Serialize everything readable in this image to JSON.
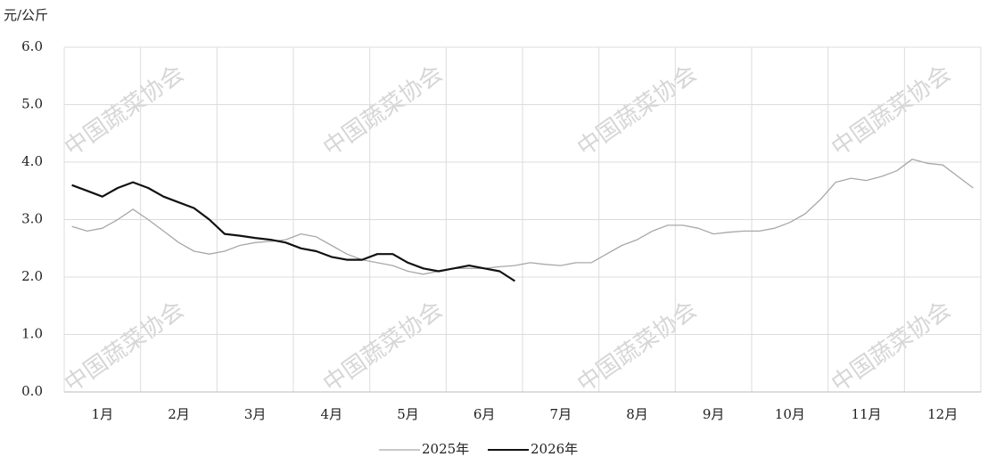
{
  "chart_data": {
    "type": "line",
    "y_label": "元/公斤",
    "watermark": "中国蔬菜协会",
    "categories": [
      null,
      null,
      "1月",
      null,
      null,
      null,
      null,
      "2月",
      null,
      null,
      null,
      null,
      "3月",
      null,
      null,
      null,
      null,
      "4月",
      null,
      null,
      null,
      null,
      "5月",
      null,
      null,
      null,
      null,
      "6月",
      null,
      null,
      null,
      null,
      "7月",
      null,
      null,
      null,
      null,
      "8月",
      null,
      null,
      null,
      null,
      "9月",
      null,
      null,
      null,
      null,
      "10月",
      null,
      null,
      null,
      null,
      "11月",
      null,
      null,
      null,
      null,
      "12月",
      null,
      null
    ],
    "series": [
      {
        "name": "2025年",
        "color": "#a8a8a8",
        "values": [
          2.88,
          2.8,
          2.85,
          3.0,
          3.18,
          3.0,
          2.8,
          2.6,
          2.45,
          2.4,
          2.45,
          2.55,
          2.6,
          2.62,
          2.65,
          2.75,
          2.7,
          2.55,
          2.4,
          2.3,
          2.25,
          2.2,
          2.1,
          2.05,
          2.1,
          2.15,
          2.15,
          2.15,
          2.18,
          2.2,
          2.25,
          2.22,
          2.2,
          2.25,
          2.25,
          2.4,
          2.55,
          2.65,
          2.8,
          2.9,
          2.9,
          2.85,
          2.75,
          2.78,
          2.8,
          2.8,
          2.85,
          2.95,
          3.1,
          3.35,
          3.65,
          3.72,
          3.68,
          3.75,
          3.85,
          4.05,
          3.98,
          3.95,
          3.75,
          3.55
        ]
      },
      {
        "name": "2026年",
        "color": "#111111",
        "values": [
          3.6,
          3.5,
          3.4,
          3.55,
          3.65,
          3.55,
          3.4,
          3.3,
          3.2,
          3.0,
          2.75,
          2.72,
          2.68,
          2.65,
          2.6,
          2.5,
          2.45,
          2.35,
          2.3,
          2.3,
          2.4,
          2.4,
          2.25,
          2.15,
          2.1,
          2.15,
          2.2,
          2.15,
          2.1,
          1.93,
          null,
          null,
          null,
          null,
          null,
          null,
          null,
          null,
          null,
          null,
          null,
          null,
          null,
          null,
          null,
          null,
          null,
          null,
          null,
          null,
          null,
          null,
          null,
          null,
          null,
          null,
          null,
          null,
          null,
          null
        ]
      }
    ],
    "ylim": [
      0,
      6
    ],
    "yticks": [
      {
        "value": 0,
        "label": "0.0"
      },
      {
        "value": 1,
        "label": "1.0"
      },
      {
        "value": 2,
        "label": "2.0"
      },
      {
        "value": 3,
        "label": "3.0"
      },
      {
        "value": 4,
        "label": "4.0"
      },
      {
        "value": 5,
        "label": "5.0"
      },
      {
        "value": 6,
        "label": "6.0"
      }
    ],
    "grid": true
  }
}
